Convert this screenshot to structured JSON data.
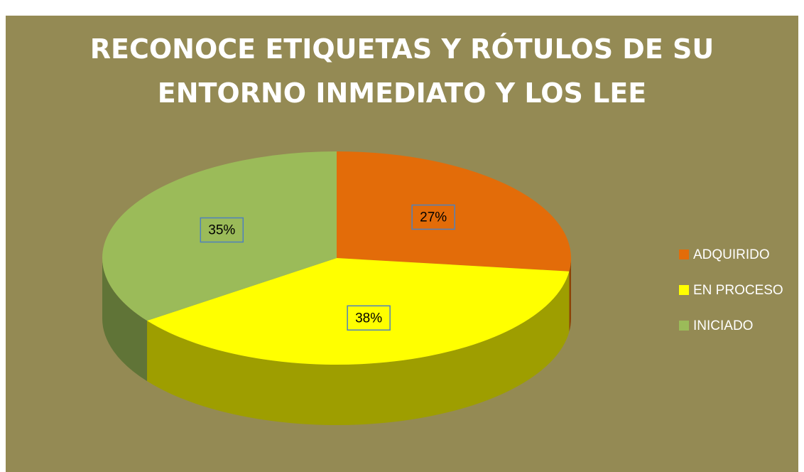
{
  "chart_data": {
    "type": "pie",
    "title": "RECONOCE ETIQUETAS Y RÓTULOS DE SU ENTORNO INMEDIATO Y LOS LEE",
    "categories": [
      "ADQUIRIDO",
      "EN PROCESO",
      "INICIADO"
    ],
    "values": [
      27,
      38,
      35
    ],
    "value_labels": [
      "27%",
      "38%",
      "35%"
    ],
    "colors": [
      "#e36c09",
      "#ffff00",
      "#9bbb59"
    ],
    "legend": "right"
  }
}
